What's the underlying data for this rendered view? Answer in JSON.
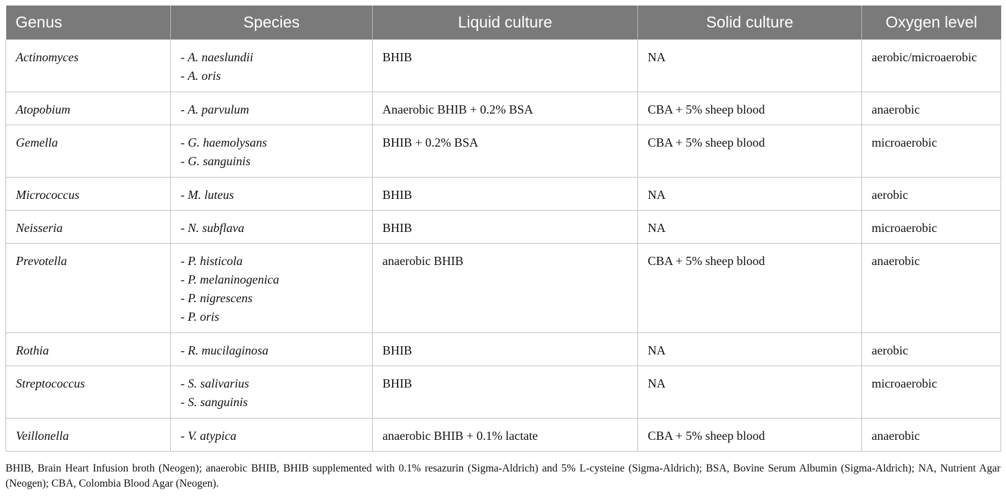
{
  "table": {
    "headers": [
      "Genus",
      "Species",
      "Liquid culture",
      "Solid culture",
      "Oxygen level"
    ],
    "rows": [
      {
        "genus": "Actinomyces",
        "species": [
          "A. naeslundii",
          "A. oris"
        ],
        "liquid": "BHIB",
        "solid": "NA",
        "oxygen": "aerobic/microaerobic"
      },
      {
        "genus": "Atopobium",
        "species": [
          "A. parvulum"
        ],
        "liquid": "Anaerobic BHIB + 0.2% BSA",
        "solid": "CBA + 5% sheep blood",
        "oxygen": "anaerobic"
      },
      {
        "genus": "Gemella",
        "species": [
          "G. haemolysans",
          "G. sanguinis"
        ],
        "liquid": "BHIB + 0.2% BSA",
        "solid": "CBA + 5% sheep blood",
        "oxygen": "microaerobic"
      },
      {
        "genus": "Micrococcus",
        "species": [
          "M. luteus"
        ],
        "liquid": "BHIB",
        "solid": "NA",
        "oxygen": "aerobic"
      },
      {
        "genus": "Neisseria",
        "species": [
          "N. subflava"
        ],
        "liquid": "BHIB",
        "solid": "NA",
        "oxygen": "microaerobic"
      },
      {
        "genus": "Prevotella",
        "species": [
          "P. histicola",
          "P. melaninogenica",
          "P. nigrescens",
          "P. oris"
        ],
        "liquid": "anaerobic BHIB",
        "solid": "CBA + 5% sheep blood",
        "oxygen": "anaerobic"
      },
      {
        "genus": "Rothia",
        "species": [
          "R. mucilaginosa"
        ],
        "liquid": "BHIB",
        "solid": "NA",
        "oxygen": "aerobic"
      },
      {
        "genus": "Streptococcus",
        "species": [
          "S. salivarius",
          "S. sanguinis"
        ],
        "liquid": "BHIB",
        "solid": "NA",
        "oxygen": "microaerobic"
      },
      {
        "genus": "Veillonella",
        "species": [
          "V. atypica"
        ],
        "liquid": "anaerobic BHIB + 0.1% lactate",
        "solid": "CBA + 5% sheep blood",
        "oxygen": "anaerobic"
      }
    ]
  },
  "footnote": "BHIB, Brain Heart Infusion broth (Neogen); anaerobic BHIB, BHIB supplemented with 0.1% resazurin (Sigma-Aldrich) and 5% L-cysteine (Sigma-Aldrich); BSA, Bovine Serum Albumin (Sigma-Aldrich); NA, Nutrient Agar (Neogen); CBA, Colombia Blood Agar (Neogen)."
}
